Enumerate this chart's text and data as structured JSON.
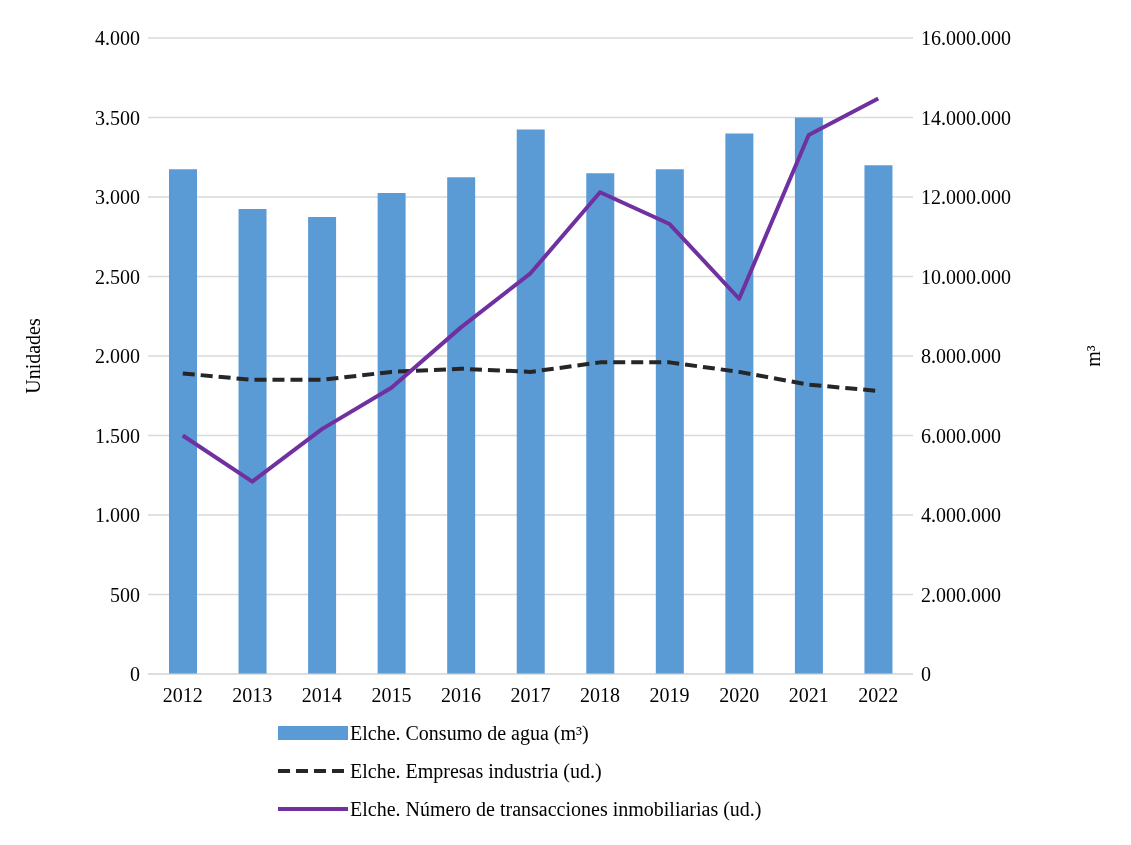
{
  "chart_data": {
    "type": "bar",
    "categories": [
      "2012",
      "2013",
      "2014",
      "2015",
      "2016",
      "2017",
      "2018",
      "2019",
      "2020",
      "2021",
      "2022"
    ],
    "ylabel": "Unidades",
    "y2label": "m³",
    "ylim": [
      0,
      4000
    ],
    "yticks": [
      {
        "value": 0,
        "label": "0"
      },
      {
        "value": 500,
        "label": "500"
      },
      {
        "value": 1000,
        "label": "1.000"
      },
      {
        "value": 1500,
        "label": "1.500"
      },
      {
        "value": 2000,
        "label": "2.000"
      },
      {
        "value": 2500,
        "label": "2.500"
      },
      {
        "value": 3000,
        "label": "3.000"
      },
      {
        "value": 3500,
        "label": "3.500"
      },
      {
        "value": 4000,
        "label": "4.000"
      }
    ],
    "y2lim": [
      0,
      16000000
    ],
    "y2ticks": [
      {
        "value": 0,
        "label": "0"
      },
      {
        "value": 2000000,
        "label": "2.000.000"
      },
      {
        "value": 4000000,
        "label": "4.000.000"
      },
      {
        "value": 6000000,
        "label": "6.000.000"
      },
      {
        "value": 8000000,
        "label": "8.000.000"
      },
      {
        "value": 10000000,
        "label": "10.000.000"
      },
      {
        "value": 12000000,
        "label": "12.000.000"
      },
      {
        "value": 14000000,
        "label": "14.000.000"
      },
      {
        "value": 16000000,
        "label": "16.000.000"
      }
    ],
    "grid": "y",
    "legend": "bottom",
    "series": [
      {
        "name": "Elche. Consumo de agua (m³)",
        "axis": "y2",
        "color": "#5b9bd5",
        "values": [
          12700000,
          11700000,
          11500000,
          12100000,
          12500000,
          13700000,
          12600000,
          12700000,
          13600000,
          14000000,
          12800000
        ]
      },
      {
        "name": "Elche. Empresas industria (ud.)",
        "type": "line",
        "line_style": "dashed",
        "marker": "none",
        "color": "#262626",
        "values": [
          1890,
          1850,
          1850,
          1900,
          1920,
          1900,
          1960,
          1960,
          1900,
          1820,
          1780
        ]
      },
      {
        "name": "Elche. Número de transacciones inmobiliarias (ud.)",
        "type": "line",
        "line_style": "solid",
        "marker": "none",
        "color": "#7030a0",
        "values": [
          1500,
          1210,
          1540,
          1800,
          2180,
          2520,
          3030,
          2830,
          2360,
          3390,
          3620
        ]
      }
    ]
  }
}
